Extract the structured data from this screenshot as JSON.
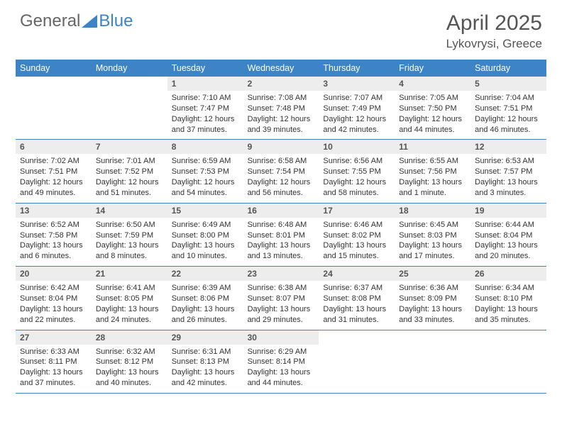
{
  "logo": {
    "text_general": "General",
    "text_blue": "Blue"
  },
  "title": "April 2025",
  "location": "Lykovrysi, Greece",
  "colors": {
    "header_bg": "#3d84c6",
    "header_text": "#ffffff",
    "daynum_bg": "#ededed",
    "text": "#333333",
    "border": "#3d84c6"
  },
  "day_names": [
    "Sunday",
    "Monday",
    "Tuesday",
    "Wednesday",
    "Thursday",
    "Friday",
    "Saturday"
  ],
  "weeks": [
    [
      null,
      null,
      {
        "n": "1",
        "sunrise": "7:10 AM",
        "sunset": "7:47 PM",
        "daylight": "12 hours and 37 minutes."
      },
      {
        "n": "2",
        "sunrise": "7:08 AM",
        "sunset": "7:48 PM",
        "daylight": "12 hours and 39 minutes."
      },
      {
        "n": "3",
        "sunrise": "7:07 AM",
        "sunset": "7:49 PM",
        "daylight": "12 hours and 42 minutes."
      },
      {
        "n": "4",
        "sunrise": "7:05 AM",
        "sunset": "7:50 PM",
        "daylight": "12 hours and 44 minutes."
      },
      {
        "n": "5",
        "sunrise": "7:04 AM",
        "sunset": "7:51 PM",
        "daylight": "12 hours and 46 minutes."
      }
    ],
    [
      {
        "n": "6",
        "sunrise": "7:02 AM",
        "sunset": "7:51 PM",
        "daylight": "12 hours and 49 minutes."
      },
      {
        "n": "7",
        "sunrise": "7:01 AM",
        "sunset": "7:52 PM",
        "daylight": "12 hours and 51 minutes."
      },
      {
        "n": "8",
        "sunrise": "6:59 AM",
        "sunset": "7:53 PM",
        "daylight": "12 hours and 54 minutes."
      },
      {
        "n": "9",
        "sunrise": "6:58 AM",
        "sunset": "7:54 PM",
        "daylight": "12 hours and 56 minutes."
      },
      {
        "n": "10",
        "sunrise": "6:56 AM",
        "sunset": "7:55 PM",
        "daylight": "12 hours and 58 minutes."
      },
      {
        "n": "11",
        "sunrise": "6:55 AM",
        "sunset": "7:56 PM",
        "daylight": "13 hours and 1 minute."
      },
      {
        "n": "12",
        "sunrise": "6:53 AM",
        "sunset": "7:57 PM",
        "daylight": "13 hours and 3 minutes."
      }
    ],
    [
      {
        "n": "13",
        "sunrise": "6:52 AM",
        "sunset": "7:58 PM",
        "daylight": "13 hours and 6 minutes."
      },
      {
        "n": "14",
        "sunrise": "6:50 AM",
        "sunset": "7:59 PM",
        "daylight": "13 hours and 8 minutes."
      },
      {
        "n": "15",
        "sunrise": "6:49 AM",
        "sunset": "8:00 PM",
        "daylight": "13 hours and 10 minutes."
      },
      {
        "n": "16",
        "sunrise": "6:48 AM",
        "sunset": "8:01 PM",
        "daylight": "13 hours and 13 minutes."
      },
      {
        "n": "17",
        "sunrise": "6:46 AM",
        "sunset": "8:02 PM",
        "daylight": "13 hours and 15 minutes."
      },
      {
        "n": "18",
        "sunrise": "6:45 AM",
        "sunset": "8:03 PM",
        "daylight": "13 hours and 17 minutes."
      },
      {
        "n": "19",
        "sunrise": "6:44 AM",
        "sunset": "8:04 PM",
        "daylight": "13 hours and 20 minutes."
      }
    ],
    [
      {
        "n": "20",
        "sunrise": "6:42 AM",
        "sunset": "8:04 PM",
        "daylight": "13 hours and 22 minutes."
      },
      {
        "n": "21",
        "sunrise": "6:41 AM",
        "sunset": "8:05 PM",
        "daylight": "13 hours and 24 minutes."
      },
      {
        "n": "22",
        "sunrise": "6:39 AM",
        "sunset": "8:06 PM",
        "daylight": "13 hours and 26 minutes."
      },
      {
        "n": "23",
        "sunrise": "6:38 AM",
        "sunset": "8:07 PM",
        "daylight": "13 hours and 29 minutes."
      },
      {
        "n": "24",
        "sunrise": "6:37 AM",
        "sunset": "8:08 PM",
        "daylight": "13 hours and 31 minutes."
      },
      {
        "n": "25",
        "sunrise": "6:36 AM",
        "sunset": "8:09 PM",
        "daylight": "13 hours and 33 minutes."
      },
      {
        "n": "26",
        "sunrise": "6:34 AM",
        "sunset": "8:10 PM",
        "daylight": "13 hours and 35 minutes."
      }
    ],
    [
      {
        "n": "27",
        "sunrise": "6:33 AM",
        "sunset": "8:11 PM",
        "daylight": "13 hours and 37 minutes."
      },
      {
        "n": "28",
        "sunrise": "6:32 AM",
        "sunset": "8:12 PM",
        "daylight": "13 hours and 40 minutes."
      },
      {
        "n": "29",
        "sunrise": "6:31 AM",
        "sunset": "8:13 PM",
        "daylight": "13 hours and 42 minutes."
      },
      {
        "n": "30",
        "sunrise": "6:29 AM",
        "sunset": "8:14 PM",
        "daylight": "13 hours and 44 minutes."
      },
      null,
      null,
      null
    ]
  ],
  "labels": {
    "sunrise_prefix": "Sunrise: ",
    "sunset_prefix": "Sunset: ",
    "daylight_prefix": "Daylight: "
  }
}
